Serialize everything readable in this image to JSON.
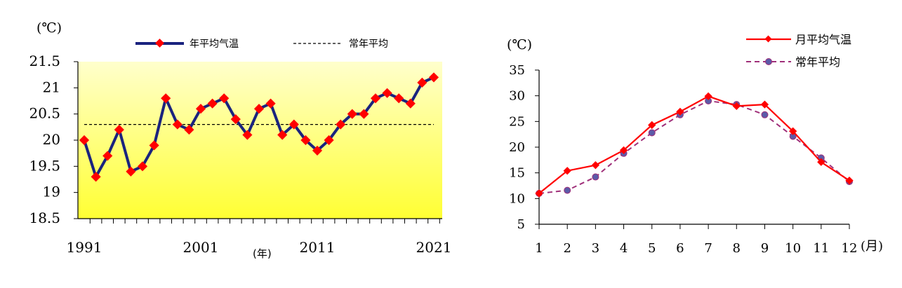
{
  "chart_data": [
    {
      "type": "line",
      "unit_label": "(℃)",
      "xlabel": "(年)",
      "x_tick_labels": [
        "1991",
        "2001",
        "2011",
        "2021"
      ],
      "y_tick_labels": [
        "21.5",
        "21",
        "20.5",
        "20",
        "19.5",
        "19",
        "18.5"
      ],
      "ylim": [
        18.5,
        21.5
      ],
      "xlim": [
        1991,
        2021
      ],
      "x": [
        1991,
        1992,
        1993,
        1994,
        1995,
        1996,
        1997,
        1998,
        1999,
        2000,
        2001,
        2002,
        2003,
        2004,
        2005,
        2006,
        2007,
        2008,
        2009,
        2010,
        2011,
        2012,
        2013,
        2014,
        2015,
        2016,
        2017,
        2018,
        2019,
        2020,
        2021
      ],
      "series": [
        {
          "name": "年平均气温",
          "values": [
            20.0,
            19.3,
            19.7,
            20.2,
            19.4,
            19.5,
            19.9,
            20.8,
            20.3,
            20.2,
            20.6,
            20.7,
            20.8,
            20.4,
            20.1,
            20.6,
            20.7,
            20.1,
            20.3,
            20.0,
            19.8,
            20.0,
            20.3,
            20.5,
            20.5,
            20.8,
            20.9,
            20.8,
            20.7,
            21.1,
            21.2
          ],
          "color": "#1a237e",
          "marker_color": "#ff0000"
        },
        {
          "name": "常年平均",
          "value": 20.3,
          "color": "#000000",
          "style": "dashed"
        }
      ],
      "background_gradient": [
        "#ffffcc",
        "#ffff33"
      ],
      "legend_position": "top"
    },
    {
      "type": "line",
      "unit_label": "(℃)",
      "xlabel": "(月)",
      "categories": [
        "1",
        "2",
        "3",
        "4",
        "5",
        "6",
        "7",
        "8",
        "9",
        "10",
        "11",
        "12"
      ],
      "y_tick_labels": [
        "35",
        "30",
        "25",
        "20",
        "15",
        "10",
        "5"
      ],
      "ylim": [
        5,
        35
      ],
      "series": [
        {
          "name": "月平均气温",
          "values": [
            11.0,
            15.4,
            16.5,
            19.4,
            24.3,
            26.9,
            29.9,
            28.0,
            28.3,
            23.1,
            17.1,
            13.5
          ],
          "color": "#ff0000",
          "marker_color": "#ff0000",
          "style": "solid"
        },
        {
          "name": "常年平均",
          "values": [
            11.0,
            11.6,
            14.2,
            18.8,
            22.8,
            26.3,
            29.0,
            28.3,
            26.3,
            22.1,
            17.9,
            13.3
          ],
          "color": "#a0307a",
          "marker_color": "#5c5aa8",
          "style": "dashed"
        }
      ],
      "legend_position": "top-right"
    }
  ]
}
